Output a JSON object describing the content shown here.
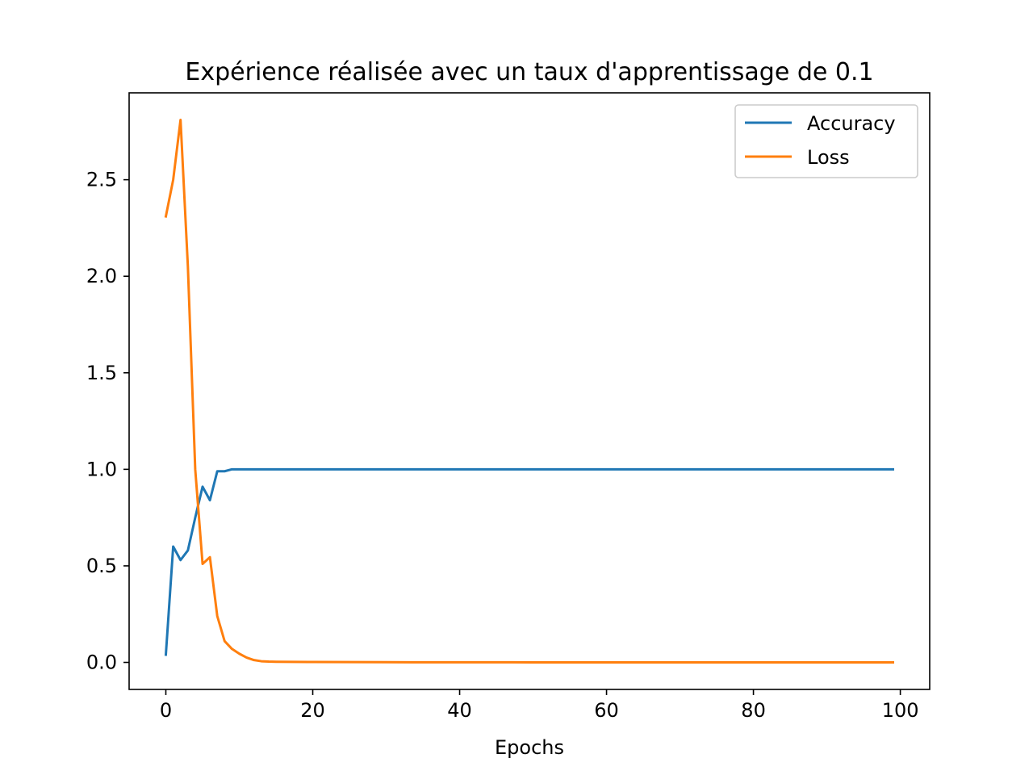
{
  "chart_data": {
    "type": "line",
    "title": "Expérience réalisée avec un taux d'apprentissage de 0.1",
    "xlabel": "Epochs",
    "ylabel": "",
    "xlim": [
      -5,
      104
    ],
    "ylim": [
      -0.14,
      2.95
    ],
    "xticks": [
      0,
      20,
      40,
      60,
      80,
      100
    ],
    "xtick_labels": [
      "0",
      "20",
      "40",
      "60",
      "80",
      "100"
    ],
    "yticks": [
      0.0,
      0.5,
      1.0,
      1.5,
      2.0,
      2.5
    ],
    "ytick_labels": [
      "0.0",
      "0.5",
      "1.0",
      "1.5",
      "2.0",
      "2.5"
    ],
    "grid": false,
    "legend": "top-right",
    "series": [
      {
        "name": "Accuracy",
        "color": "#1f77b4",
        "x": [
          0,
          1,
          2,
          3,
          4,
          5,
          6,
          7,
          8,
          9,
          10,
          20,
          30,
          40,
          50,
          60,
          70,
          80,
          90,
          99
        ],
        "y": [
          0.04,
          0.6,
          0.53,
          0.58,
          0.75,
          0.91,
          0.84,
          0.99,
          0.99,
          1.0,
          1.0,
          1.0,
          1.0,
          1.0,
          1.0,
          1.0,
          1.0,
          1.0,
          1.0,
          1.0
        ]
      },
      {
        "name": "Loss",
        "color": "#ff7f0e",
        "x": [
          0,
          1,
          2,
          3,
          4,
          5,
          6,
          7,
          8,
          9,
          10,
          11,
          12,
          13,
          14,
          15,
          20,
          30,
          40,
          50,
          60,
          70,
          80,
          90,
          99
        ],
        "y": [
          2.31,
          2.5,
          2.81,
          2.05,
          1.0,
          0.51,
          0.545,
          0.24,
          0.11,
          0.07,
          0.045,
          0.025,
          0.012,
          0.006,
          0.004,
          0.003,
          0.002,
          0.001,
          0.0005,
          0.0003,
          0.0002,
          0.0002,
          0.0001,
          0.0001,
          0.0001
        ]
      }
    ]
  }
}
